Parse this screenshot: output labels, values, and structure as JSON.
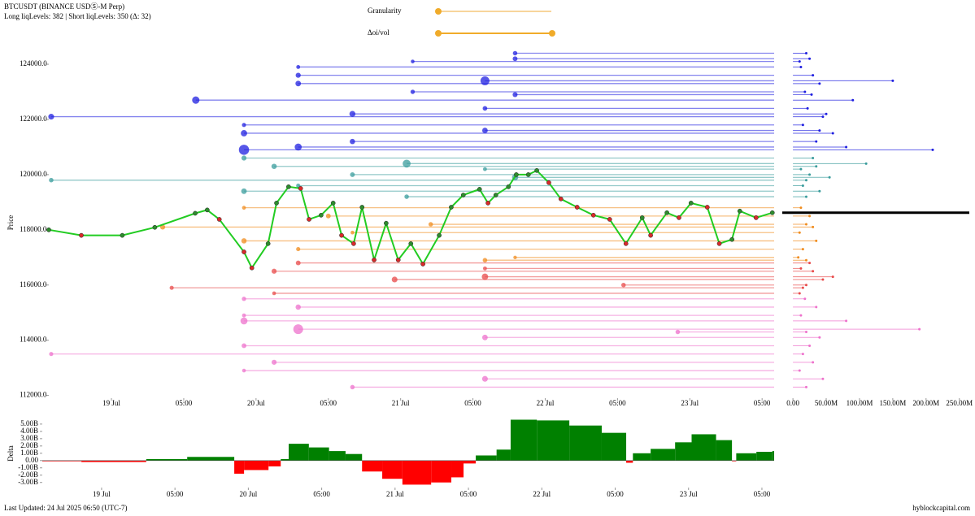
{
  "header": {
    "title": "BTCUSDT (BINANCE USDⓈ-M Perp)",
    "subtitle": "Long liqLevels: 382 | Short liqLevels: 350 (Δ: 32)"
  },
  "controls": {
    "granularity": "Granularity",
    "oi_vol": "Δoi/vol"
  },
  "footer": {
    "updated": "Last Updated: 24 Jul 2025 06:50 (UTC-7)",
    "source": "hyblockcapital.com"
  },
  "chart_data": [
    {
      "type": "line",
      "ylabel": "Price",
      "color": "#22cc22",
      "up_color": "#2e8b2e",
      "down_color": "#d82a2a",
      "x": [
        -10.4,
        -5.0,
        1.8,
        7.2,
        13.9,
        15.9,
        17.9,
        22.0,
        23.3,
        26.0,
        27.4,
        29.4,
        31.4,
        32.8,
        34.8,
        36.8,
        38.2,
        40.2,
        41.6,
        43.6,
        45.6,
        47.6,
        49.7,
        51.7,
        54.4,
        56.4,
        58.4,
        61.1,
        62.5,
        63.8,
        65.9,
        67.2,
        69.2,
        70.6,
        72.6,
        74.6,
        77.3,
        80.0,
        82.7,
        85.4,
        88.1,
        89.5,
        92.2,
        94.2,
        96.2,
        98.9,
        100.9,
        103.0,
        104.3,
        107.0,
        109.7
      ],
      "values": [
        118000,
        117800,
        117800,
        118090,
        118600,
        118720,
        118380,
        117200,
        116620,
        117500,
        118970,
        119560,
        119500,
        118380,
        118530,
        118970,
        117800,
        117500,
        118820,
        116910,
        118240,
        116910,
        117500,
        116760,
        117800,
        118820,
        119260,
        119470,
        118970,
        119260,
        119560,
        120000,
        120000,
        120150,
        119710,
        119120,
        118820,
        118530,
        118380,
        117500,
        118440,
        117800,
        118620,
        118440,
        118970,
        118820,
        117500,
        117650,
        118680,
        118440,
        118620
      ],
      "xlim": [
        -10.4,
        110
      ],
      "ylim": [
        111900,
        124620
      ],
      "xticks": [
        {
          "value": 0,
          "label": "19 Jul"
        },
        {
          "value": 12,
          "label": "05:00"
        },
        {
          "value": 24,
          "label": "20 Jul"
        },
        {
          "value": 36,
          "label": "05:00"
        },
        {
          "value": 48,
          "label": "21 Jul"
        },
        {
          "value": 60,
          "label": "05:00"
        },
        {
          "value": 72,
          "label": "22 Jul"
        },
        {
          "value": 84,
          "label": "05:00"
        },
        {
          "value": 96,
          "label": "23 Jul"
        },
        {
          "value": 108,
          "label": "05:00"
        }
      ],
      "yticks": [
        {
          "value": 112000,
          "label": "112000.0"
        },
        {
          "value": 114000,
          "label": "114000.0"
        },
        {
          "value": 116000,
          "label": "116000.0"
        },
        {
          "value": 118000,
          "label": "118000.0"
        },
        {
          "value": 120000,
          "label": "120000.0"
        },
        {
          "value": 122000,
          "label": "122000.0"
        },
        {
          "value": 124000,
          "label": "124000.0"
        }
      ],
      "levels": [
        {
          "color": "#1f1fe0",
          "y": [
            124400,
            124200,
            123900,
            123600,
            123300,
            123000,
            122700,
            122400,
            122100,
            121800,
            121500,
            121200,
            120900,
            124100,
            123400,
            122900,
            122200,
            121600,
            121000
          ],
          "x": [
            67,
            67,
            31,
            31,
            31,
            50,
            14,
            62,
            -10,
            22,
            22,
            40,
            22,
            50,
            62,
            67,
            40,
            62,
            31
          ],
          "size": [
            20,
            25,
            12,
            30,
            40,
            18,
            90,
            22,
            45,
            15,
            60,
            35,
            210,
            10,
            150,
            28,
            50,
            40,
            80
          ]
        },
        {
          "color": "#3a9c9c",
          "y": [
            120600,
            120300,
            119800,
            120400,
            120000,
            119600,
            119400,
            119200,
            120200,
            119900
          ],
          "x": [
            22,
            27,
            -10,
            49,
            40,
            31,
            22,
            49,
            62,
            67
          ],
          "size": [
            30,
            35,
            20,
            110,
            25,
            15,
            40,
            20,
            12,
            55
          ]
        },
        {
          "color": "#f08c1e",
          "y": [
            118800,
            118500,
            118200,
            117900,
            117600,
            117300,
            117000,
            118100,
            116900
          ],
          "x": [
            22,
            36,
            53,
            40,
            22,
            31,
            67,
            8.5,
            62
          ],
          "size": [
            12,
            25,
            20,
            10,
            35,
            15,
            8,
            30,
            20
          ]
        },
        {
          "color": "#e84a4a",
          "y": [
            116800,
            116500,
            116200,
            115900,
            116600,
            116300,
            116000,
            115700
          ],
          "x": [
            31,
            27,
            47,
            10,
            62,
            62,
            85,
            27
          ],
          "size": [
            25,
            30,
            45,
            15,
            12,
            60,
            20,
            10
          ]
        },
        {
          "color": "#ee72cc",
          "y": [
            115500,
            115200,
            114900,
            114700,
            114400,
            114100,
            113800,
            113500,
            113200,
            112900,
            112600,
            112300,
            114300
          ],
          "x": [
            22,
            31,
            22,
            22,
            31,
            62,
            22,
            -10,
            27,
            22,
            62,
            40,
            94
          ],
          "size": [
            18,
            35,
            12,
            80,
            190,
            40,
            25,
            15,
            30,
            10,
            45,
            20,
            20
          ]
        }
      ]
    },
    {
      "type": "bar",
      "orientation": "horizontal",
      "xlim": [
        -16,
        265
      ],
      "xticks": [
        {
          "value": 0,
          "label": "0.00"
        },
        {
          "value": 50,
          "label": "50.00M"
        },
        {
          "value": 100,
          "label": "100.00M"
        },
        {
          "value": 150,
          "label": "150.00M"
        },
        {
          "value": 200,
          "label": "200.00M"
        },
        {
          "value": 250,
          "label": "250.00M"
        }
      ]
    },
    {
      "type": "bar",
      "ylabel": "Delta",
      "color": "#008000",
      "negative_color": "#ff0000",
      "x": [
        -9.7,
        -3.3,
        7.3,
        14.0,
        21.7,
        23.3,
        27.3,
        29.3,
        30.6,
        33.9,
        37.2,
        39.9,
        42.6,
        45.9,
        49.2,
        53.9,
        57.2,
        59.2,
        61.2,
        64.6,
        66.9,
        71.2,
        76.5,
        81.8,
        85.8,
        86.9,
        89.8,
        93.8,
        96.5,
        100.5,
        103.1,
        103.8,
        107.1,
        109.7
      ],
      "values": [
        -0.1,
        -0.2,
        0.2,
        0.5,
        -1.8,
        -1.3,
        -0.8,
        0.2,
        2.3,
        1.8,
        1.3,
        0.9,
        -1.5,
        -2.5,
        -3.3,
        -3.0,
        -2.3,
        -0.4,
        0.7,
        1.5,
        5.6,
        5.5,
        4.8,
        3.8,
        -0.3,
        1.0,
        1.6,
        2.5,
        3.6,
        2.8,
        -0.1,
        1.0,
        1.2,
        1.3
      ],
      "xlim": [
        -9.7,
        110
      ],
      "ylim": [
        -3.7,
        6.1
      ],
      "xticks": [
        {
          "value": 0,
          "label": "19 Jul"
        },
        {
          "value": 12,
          "label": "05:00"
        },
        {
          "value": 24,
          "label": "20 Jul"
        },
        {
          "value": 36,
          "label": "05:00"
        },
        {
          "value": 48,
          "label": "21 Jul"
        },
        {
          "value": 60,
          "label": "05:00"
        },
        {
          "value": 72,
          "label": "22 Jul"
        },
        {
          "value": 84,
          "label": "05:00"
        },
        {
          "value": 96,
          "label": "23 Jul"
        },
        {
          "value": 108,
          "label": "05:00"
        }
      ],
      "yticks": [
        {
          "value": -3,
          "label": "-3.00B"
        },
        {
          "value": -2,
          "label": "-2.00B"
        },
        {
          "value": -1,
          "label": "-1.00B"
        },
        {
          "value": 0,
          "label": "0.00"
        },
        {
          "value": 1,
          "label": "1.00B"
        },
        {
          "value": 2,
          "label": "2.00B"
        },
        {
          "value": 3,
          "label": "3.00B"
        },
        {
          "value": 4,
          "label": "4.00B"
        },
        {
          "value": 5,
          "label": "5.00B"
        }
      ]
    }
  ]
}
